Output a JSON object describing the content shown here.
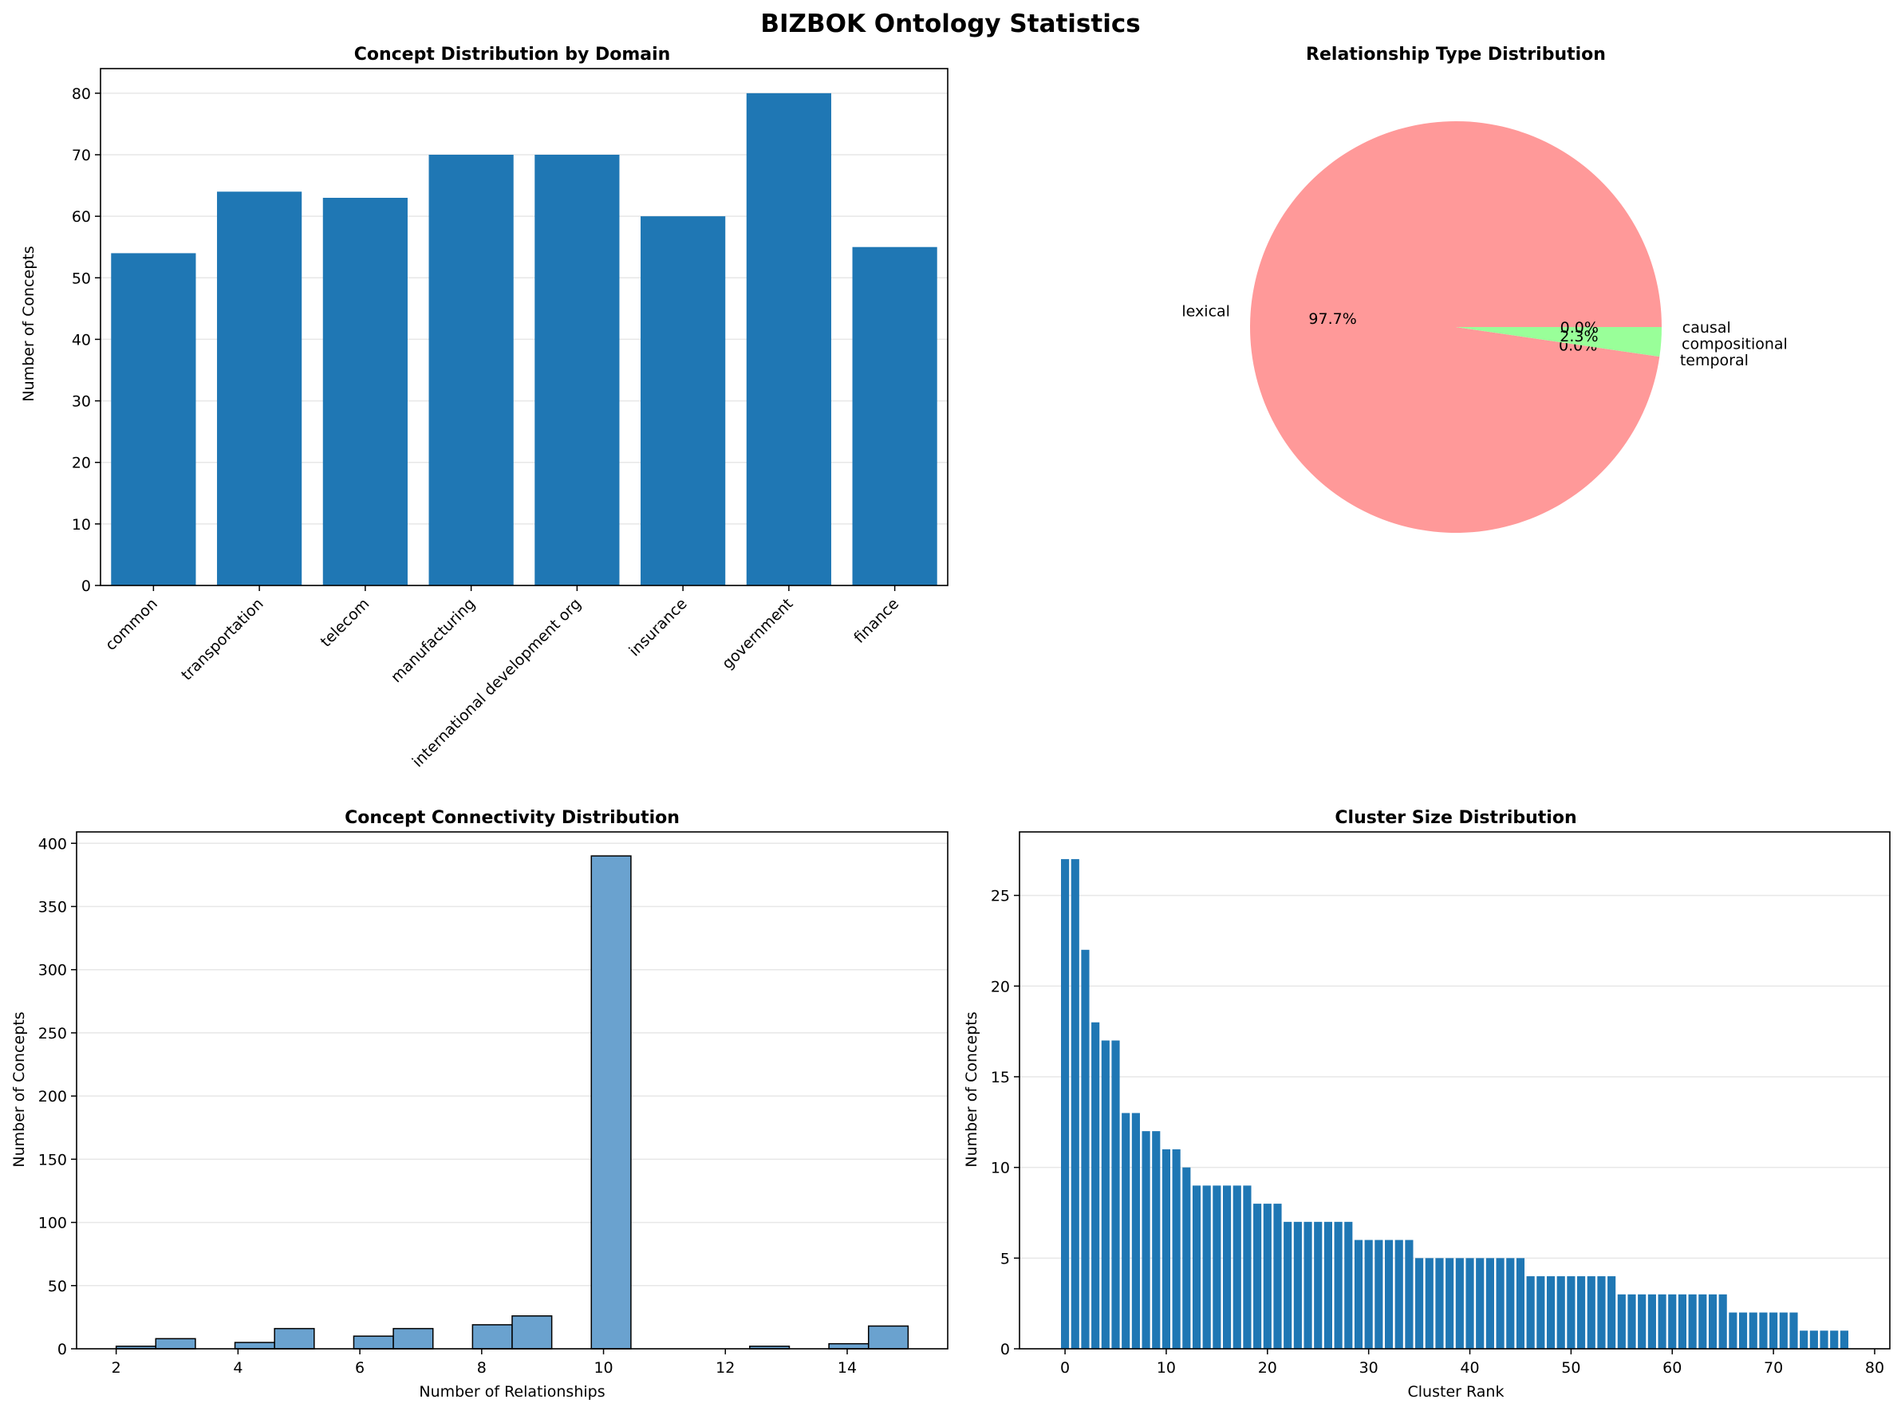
{
  "figure": {
    "title": "BIZBOK Ontology Statistics"
  },
  "chart_data": [
    {
      "type": "bar",
      "title": "Concept Distribution by Domain",
      "xlabel": "",
      "ylabel": "Number of Concepts",
      "categories": [
        "common",
        "transportation",
        "telecom",
        "manufacturing",
        "international development org",
        "insurance",
        "government",
        "finance"
      ],
      "values": [
        54,
        64,
        63,
        70,
        70,
        60,
        80,
        55
      ],
      "ylim": [
        0,
        84
      ],
      "yticks": [
        0,
        10,
        20,
        30,
        40,
        50,
        60,
        70,
        80
      ],
      "grid": "y",
      "bar_color": "#1f77b4"
    },
    {
      "type": "pie",
      "title": "Relationship Type Distribution",
      "labels": [
        "lexical",
        "temporal",
        "compositional",
        "causal"
      ],
      "values": [
        97.7,
        0.0,
        2.3,
        0.0
      ],
      "pct_labels": [
        "97.7%",
        "0.0%",
        "2.3%",
        "0.0%"
      ],
      "colors": [
        "#ff9999",
        "#66b3ff",
        "#99ff99",
        "#ffcc99"
      ]
    },
    {
      "type": "bar",
      "subtype": "histogram",
      "title": "Concept Connectivity Distribution",
      "xlabel": "Number of Relationships",
      "ylabel": "Number of Concepts",
      "bin_edges": [
        2.0,
        2.65,
        3.3,
        3.95,
        4.6,
        5.25,
        5.9,
        6.55,
        7.2,
        7.85,
        8.5,
        9.15,
        9.8,
        10.45,
        11.1,
        11.75,
        12.4,
        13.05,
        13.7,
        14.35,
        15.0
      ],
      "counts": [
        2,
        8,
        0,
        5,
        16,
        0,
        10,
        16,
        0,
        19,
        26,
        0,
        390,
        0,
        0,
        0,
        2,
        0,
        4,
        18
      ],
      "xlim": [
        1.35,
        15.65
      ],
      "ylim": [
        0,
        409
      ],
      "xticks": [
        2,
        4,
        6,
        8,
        10,
        12,
        14
      ],
      "yticks": [
        0,
        50,
        100,
        150,
        200,
        250,
        300,
        350,
        400
      ],
      "grid": "y",
      "bar_color": "#6aa2cf"
    },
    {
      "type": "bar",
      "title": "Cluster Size Distribution",
      "xlabel": "Cluster Rank",
      "ylabel": "Number of Concepts",
      "x_start": 0,
      "values": [
        27,
        27,
        22,
        18,
        17,
        17,
        13,
        13,
        12,
        12,
        11,
        11,
        10,
        9,
        9,
        9,
        9,
        9,
        9,
        8,
        8,
        8,
        7,
        7,
        7,
        7,
        7,
        7,
        7,
        6,
        6,
        6,
        6,
        6,
        6,
        5,
        5,
        5,
        5,
        5,
        5,
        5,
        5,
        5,
        5,
        5,
        4,
        4,
        4,
        4,
        4,
        4,
        4,
        4,
        4,
        3,
        3,
        3,
        3,
        3,
        3,
        3,
        3,
        3,
        3,
        3,
        2,
        2,
        2,
        2,
        2,
        2,
        2,
        1,
        1,
        1,
        1,
        1
      ],
      "xlim": [
        -4.5,
        81.5
      ],
      "ylim": [
        0,
        28.5
      ],
      "xticks": [
        0,
        10,
        20,
        30,
        40,
        50,
        60,
        70,
        80
      ],
      "yticks": [
        0,
        5,
        10,
        15,
        20,
        25
      ],
      "grid": "y",
      "bar_color": "#1f77b4"
    }
  ]
}
